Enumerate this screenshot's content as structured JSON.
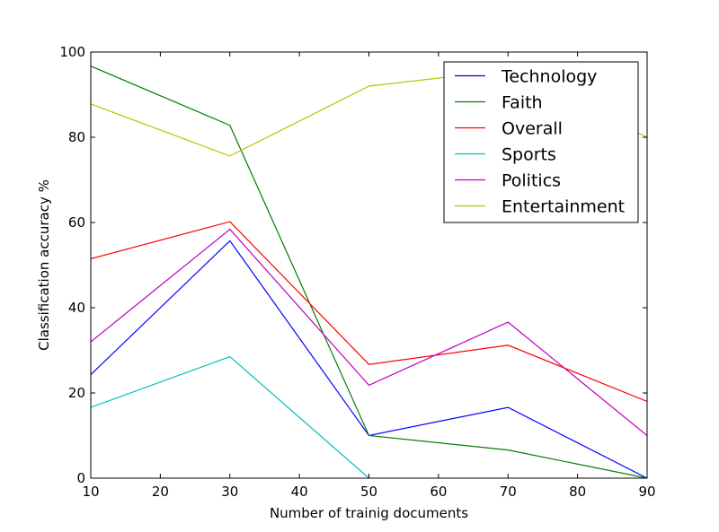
{
  "chart_data": {
    "type": "line",
    "xlabel": "Number of trainig documents",
    "ylabel": "Classification accuracy %",
    "xlim": [
      10,
      90
    ],
    "ylim": [
      0,
      100
    ],
    "x_ticks": [
      10,
      20,
      30,
      40,
      50,
      60,
      70,
      80,
      90
    ],
    "y_ticks": [
      0,
      20,
      40,
      60,
      80,
      100
    ],
    "grid": false,
    "legend_position": "top-right",
    "x": [
      10,
      30,
      50,
      70,
      90
    ],
    "series": [
      {
        "name": "Technology",
        "color": "#0000ff",
        "values": [
          24.3,
          55.7,
          10.0,
          16.6,
          0.0
        ]
      },
      {
        "name": "Faith",
        "color": "#008000",
        "values": [
          96.7,
          82.8,
          10.0,
          6.6,
          0.0
        ]
      },
      {
        "name": "Overall",
        "color": "#ff0000",
        "values": [
          51.5,
          60.2,
          26.7,
          31.2,
          18.0
        ]
      },
      {
        "name": "Sports",
        "color": "#00bfbf",
        "values": [
          16.6,
          28.5,
          0.0,
          null,
          null
        ]
      },
      {
        "name": "Politics",
        "color": "#bf00bf",
        "values": [
          32.0,
          58.4,
          21.8,
          36.6,
          10.0
        ]
      },
      {
        "name": "Entertainment",
        "color": "#bfbf00",
        "values": [
          87.8,
          75.6,
          92.0,
          95.8,
          80.0
        ]
      }
    ]
  }
}
